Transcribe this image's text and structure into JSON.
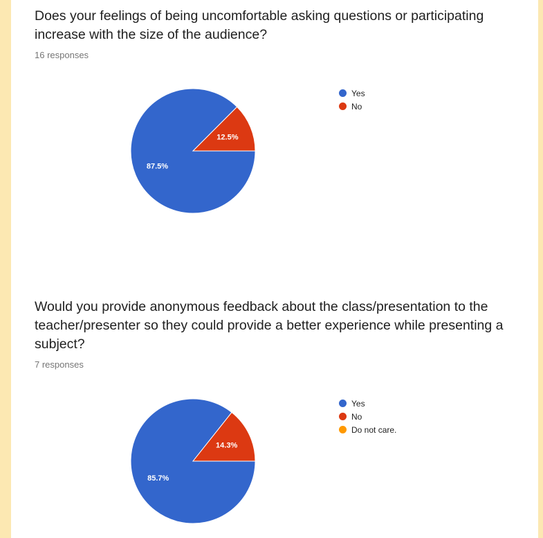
{
  "colors": {
    "page_background": "#fce8b2",
    "card_background": "#ffffff",
    "yes": "#3366cc",
    "no": "#dc3912",
    "do_not_care": "#ff9900"
  },
  "questions": [
    {
      "title": "Does your feelings of being uncomfortable asking questions or participating increase with the size of the audience?",
      "responses": "16 responses"
    },
    {
      "title": "Would you provide anonymous feedback about the class/presentation to the teacher/presenter so they could provide a better experience while presenting a subject?",
      "responses": "7 responses"
    }
  ],
  "chart_data": [
    {
      "type": "pie",
      "categories": [
        "Yes",
        "No"
      ],
      "values": [
        87.5,
        12.5
      ],
      "colors": [
        "#3366cc",
        "#dc3912"
      ],
      "data_labels": [
        "87.5%",
        "12.5%"
      ],
      "legend": [
        "Yes",
        "No"
      ],
      "legend_position": "right"
    },
    {
      "type": "pie",
      "categories": [
        "Yes",
        "No",
        "Do not care."
      ],
      "values": [
        85.7,
        14.3,
        0
      ],
      "colors": [
        "#3366cc",
        "#dc3912",
        "#ff9900"
      ],
      "data_labels": [
        "85.7%",
        "14.3%",
        ""
      ],
      "legend": [
        "Yes",
        "No",
        "Do not care."
      ],
      "legend_position": "right"
    }
  ]
}
